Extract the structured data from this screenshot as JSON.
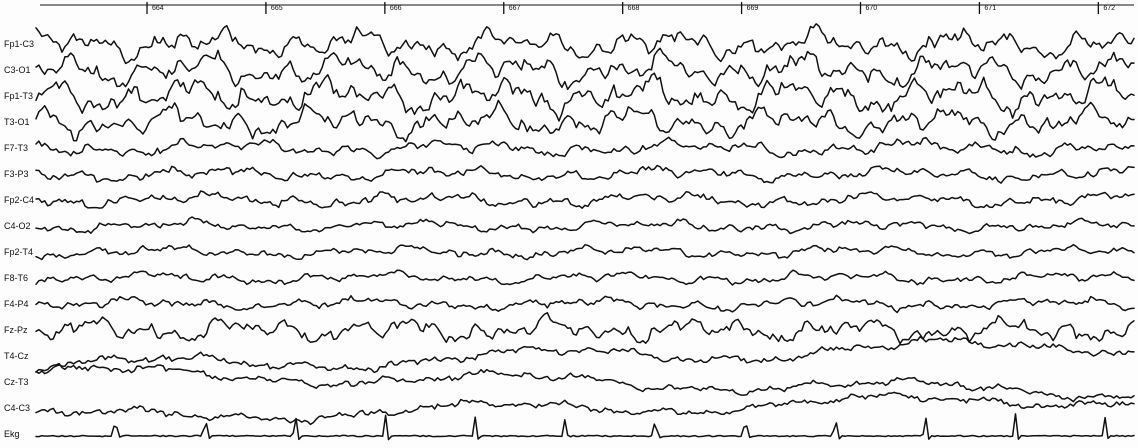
{
  "chart_data": {
    "type": "line",
    "title": "",
    "xlabel": "",
    "ylabel": "",
    "ink_color": "#111111",
    "background_color": "#fdfdfd",
    "grid": false,
    "time_ticks": [
      "664",
      "665",
      "666",
      "667",
      "668",
      "669",
      "670",
      "671",
      "672"
    ],
    "x_range_seconds": [
      663.1,
      672.3
    ],
    "series": [
      {
        "name": "Fp1-C3",
        "amplitude": 1.1,
        "wave": "slow-dense"
      },
      {
        "name": "C3-O1",
        "amplitude": 1.2,
        "wave": "slow-dense"
      },
      {
        "name": "Fp1-T3",
        "amplitude": 1.3,
        "wave": "slow-dense"
      },
      {
        "name": "T3-O1",
        "amplitude": 1.1,
        "wave": "slow-dense"
      },
      {
        "name": "F7-T3",
        "amplitude": 0.8,
        "wave": "slow"
      },
      {
        "name": "F3-P3",
        "amplitude": 0.7,
        "wave": "slow"
      },
      {
        "name": "Fp2-C4",
        "amplitude": 0.7,
        "wave": "slow"
      },
      {
        "name": "C4-O2",
        "amplitude": 0.6,
        "wave": "slow"
      },
      {
        "name": "Fp2-T4",
        "amplitude": 0.6,
        "wave": "slow"
      },
      {
        "name": "F8-T6",
        "amplitude": 0.6,
        "wave": "slow"
      },
      {
        "name": "F4-P4",
        "amplitude": 0.6,
        "wave": "slow"
      },
      {
        "name": "Fz-Pz",
        "amplitude": 0.9,
        "wave": "slow-dense"
      },
      {
        "name": "T4-Cz",
        "amplitude": 0.8,
        "wave": "drift"
      },
      {
        "name": "Cz-T3",
        "amplitude": 0.7,
        "wave": "drift"
      },
      {
        "name": "C4-C3",
        "amplitude": 0.7,
        "wave": "drift"
      },
      {
        "name": "Ekg",
        "amplitude": 1.0,
        "wave": "ekg"
      }
    ]
  }
}
